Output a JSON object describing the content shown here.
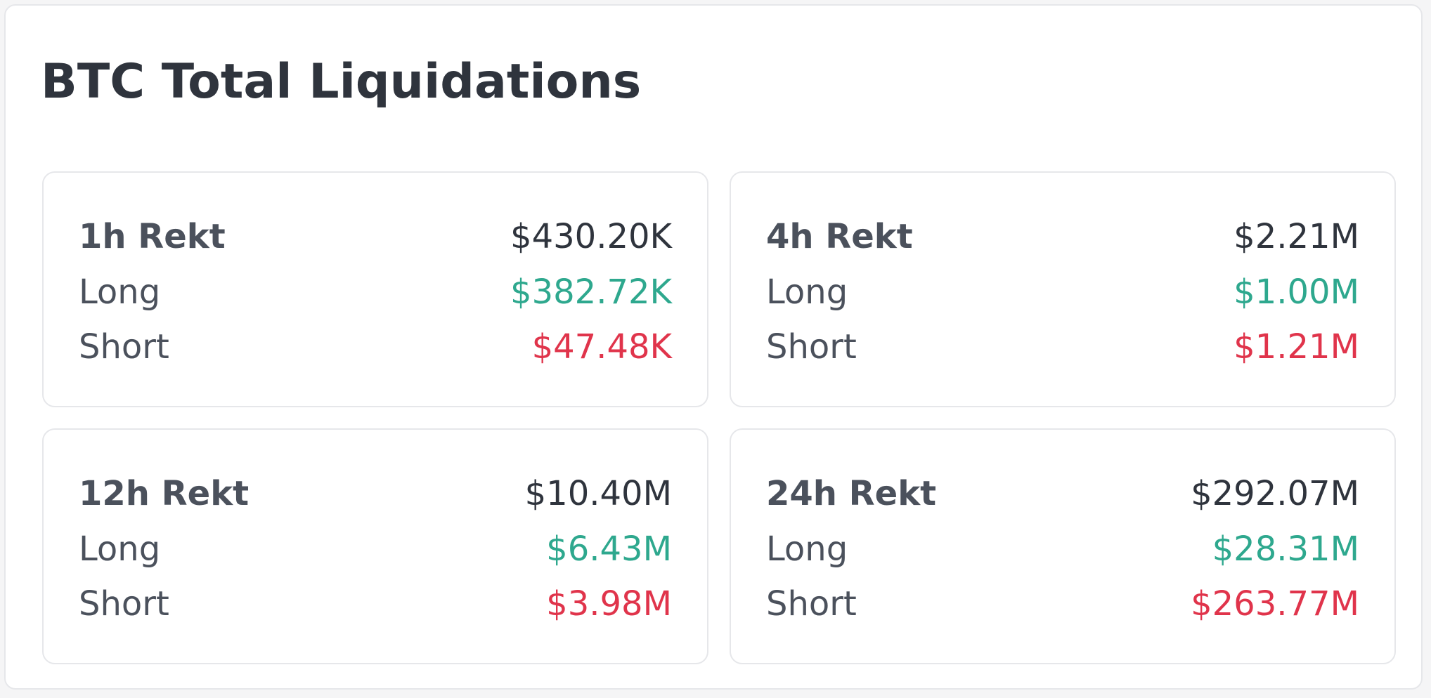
{
  "title": "BTC Total Liquidations",
  "colors": {
    "long": "#2ea88e",
    "short": "#e0344b",
    "text": "#2f343d",
    "label": "#4b515c"
  },
  "cards": [
    {
      "heading": "1h Rekt",
      "total": "$430.20K",
      "long_label": "Long",
      "long_value": "$382.72K",
      "short_label": "Short",
      "short_value": "$47.48K"
    },
    {
      "heading": "4h Rekt",
      "total": "$2.21M",
      "long_label": "Long",
      "long_value": "$1.00M",
      "short_label": "Short",
      "short_value": "$1.21M"
    },
    {
      "heading": "12h Rekt",
      "total": "$10.40M",
      "long_label": "Long",
      "long_value": "$6.43M",
      "short_label": "Short",
      "short_value": "$3.98M"
    },
    {
      "heading": "24h Rekt",
      "total": "$292.07M",
      "long_label": "Long",
      "long_value": "$28.31M",
      "short_label": "Short",
      "short_value": "$263.77M"
    }
  ]
}
